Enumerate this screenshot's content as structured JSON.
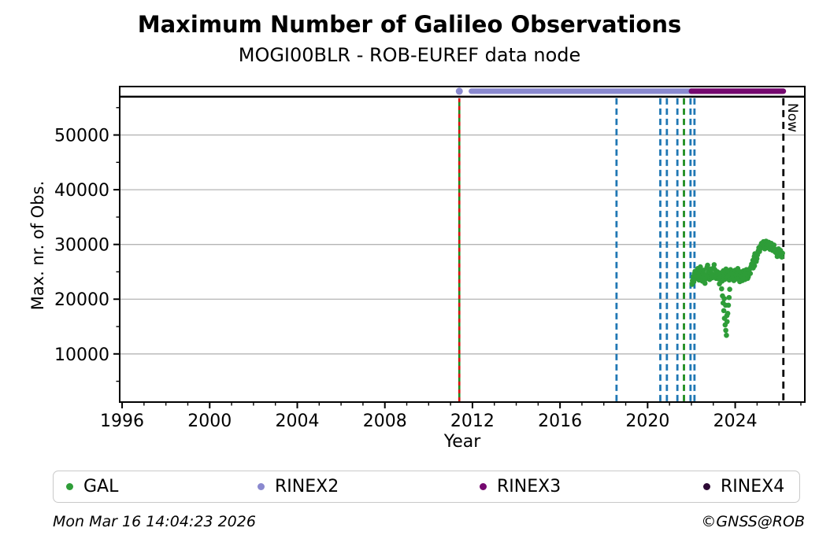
{
  "header": {
    "title": "Maximum Number of Galileo Observations",
    "subtitle": "MOGI00BLR - ROB-EUREF data node"
  },
  "footer": {
    "timestamp": "Mon Mar 16 14:04:23 2026",
    "copyright": "©GNSS@ROB"
  },
  "legend": {
    "items": [
      {
        "label": "GAL",
        "color": "#2e9d38"
      },
      {
        "label": "RINEX2",
        "color": "#8a89cf"
      },
      {
        "label": "RINEX3",
        "color": "#75086f"
      },
      {
        "label": "RINEX4",
        "color": "#2d0a35"
      }
    ]
  },
  "chart_data": {
    "type": "scatter",
    "title": "Maximum Number of Galileo Observations",
    "subtitle": "MOGI00BLR - ROB-EUREF data node",
    "xlabel": "Year",
    "ylabel": "Max. nr. of Obs.",
    "xlim": [
      1995.89,
      2027.18
    ],
    "ylim": [
      1200,
      58850
    ],
    "x_major_ticks": [
      1996,
      2000,
      2004,
      2008,
      2012,
      2016,
      2020,
      2024
    ],
    "x_minor_tick_step": 1,
    "y_major_ticks": [
      10000,
      20000,
      30000,
      40000,
      50000
    ],
    "y_minor_ticks": [
      5000,
      15000,
      25000,
      35000,
      45000,
      55000
    ],
    "grid": "horizontal-major",
    "grid_color": "#b4b4b4",
    "legend_position": "bottom",
    "reference_lines": {
      "max_obs_line": {
        "value": 57000,
        "color": "#000000",
        "style": "solid"
      },
      "launch_line": {
        "year": 2011.4,
        "color_solid": "#1e8c1e",
        "color_dash": "#dd1111",
        "style": "green-with-red-dashes"
      },
      "blue_dashed_lines": {
        "years": [
          2018.58,
          2020.58,
          2020.88,
          2021.36,
          2021.96,
          2022.14
        ],
        "color": "#1f77b4",
        "style": "dashed"
      },
      "green_dashed_line": {
        "year": 2021.66,
        "color": "#1e8c1e",
        "style": "dashed"
      },
      "now_line": {
        "year": 2026.2,
        "label": "Now",
        "color": "#000000",
        "style": "dashed"
      }
    },
    "series": [
      {
        "name": "RINEX2",
        "type": "line",
        "color": "#8a89cf",
        "value": 58000,
        "point_years": [
          2011.4
        ],
        "segment": [
          2011.95,
          2022.0
        ]
      },
      {
        "name": "RINEX3",
        "type": "line",
        "color": "#75086f",
        "value": 58000,
        "segment": [
          2022.0,
          2026.2
        ]
      },
      {
        "name": "RINEX4",
        "type": "line",
        "color": "#2d0a35",
        "value": null,
        "segment": null
      },
      {
        "name": "GAL",
        "type": "scatter",
        "color": "#2e9d38",
        "points": [
          [
            2022.03,
            22700
          ],
          [
            2022.04,
            22900
          ],
          [
            2022.05,
            23400
          ],
          [
            2022.08,
            24100
          ],
          [
            2022.11,
            23200
          ],
          [
            2022.14,
            24700
          ],
          [
            2022.17,
            25100
          ],
          [
            2022.2,
            24400
          ],
          [
            2022.23,
            23800
          ],
          [
            2022.26,
            24900
          ],
          [
            2022.29,
            25600
          ],
          [
            2022.32,
            24200
          ],
          [
            2022.35,
            23500
          ],
          [
            2022.38,
            24800
          ],
          [
            2022.41,
            25900
          ],
          [
            2022.44,
            25200
          ],
          [
            2022.47,
            24100
          ],
          [
            2022.5,
            23300
          ],
          [
            2022.53,
            24600
          ],
          [
            2022.56,
            25300
          ],
          [
            2022.59,
            24000
          ],
          [
            2022.62,
            22900
          ],
          [
            2022.65,
            23700
          ],
          [
            2022.68,
            24500
          ],
          [
            2022.71,
            25800
          ],
          [
            2022.74,
            26200
          ],
          [
            2022.77,
            25000
          ],
          [
            2022.8,
            24300
          ],
          [
            2022.83,
            23600
          ],
          [
            2022.86,
            24900
          ],
          [
            2022.89,
            25500
          ],
          [
            2022.92,
            24700
          ],
          [
            2022.95,
            23900
          ],
          [
            2022.98,
            24400
          ],
          [
            2023.01,
            25700
          ],
          [
            2023.04,
            26300
          ],
          [
            2023.07,
            25400
          ],
          [
            2023.1,
            24600
          ],
          [
            2023.13,
            23800
          ],
          [
            2023.16,
            24200
          ],
          [
            2023.19,
            25000
          ],
          [
            2023.22,
            24500
          ],
          [
            2023.25,
            23700
          ],
          [
            2023.28,
            22800
          ],
          [
            2023.31,
            23900
          ],
          [
            2023.34,
            24800
          ],
          [
            2023.37,
            24100
          ],
          [
            2023.4,
            23300
          ],
          [
            2023.43,
            24600
          ],
          [
            2023.46,
            25200
          ],
          [
            2023.49,
            24400
          ],
          [
            2023.52,
            23600
          ],
          [
            2023.55,
            24900
          ],
          [
            2023.58,
            25500
          ],
          [
            2023.61,
            24700
          ],
          [
            2023.64,
            23900
          ],
          [
            2023.67,
            25100
          ],
          [
            2023.7,
            24300
          ],
          [
            2023.73,
            23500
          ],
          [
            2023.76,
            24800
          ],
          [
            2023.79,
            25400
          ],
          [
            2023.82,
            24600
          ],
          [
            2023.85,
            23800
          ],
          [
            2023.88,
            25000
          ],
          [
            2023.91,
            24200
          ],
          [
            2023.94,
            23400
          ],
          [
            2023.97,
            24700
          ],
          [
            2024.0,
            25300
          ],
          [
            2024.03,
            24500
          ],
          [
            2024.06,
            23700
          ],
          [
            2024.09,
            24900
          ],
          [
            2024.12,
            25600
          ],
          [
            2024.15,
            24800
          ],
          [
            2024.18,
            24000
          ],
          [
            2024.21,
            23200
          ],
          [
            2024.24,
            24400
          ],
          [
            2024.27,
            25000
          ],
          [
            2024.3,
            24200
          ],
          [
            2024.33,
            23400
          ],
          [
            2024.36,
            24600
          ],
          [
            2024.39,
            25200
          ],
          [
            2024.42,
            24400
          ],
          [
            2024.45,
            23600
          ],
          [
            2024.48,
            24800
          ],
          [
            2024.51,
            25400
          ],
          [
            2024.54,
            24600
          ],
          [
            2024.57,
            23800
          ],
          [
            2024.6,
            24100
          ],
          [
            2024.63,
            24900
          ],
          [
            2024.66,
            25500
          ],
          [
            2024.69,
            24700
          ],
          [
            2024.72,
            25900
          ],
          [
            2024.75,
            26400
          ],
          [
            2023.38,
            21900
          ],
          [
            2023.42,
            20600
          ],
          [
            2023.45,
            19300
          ],
          [
            2023.48,
            17900
          ],
          [
            2023.5,
            20100
          ],
          [
            2023.51,
            16500
          ],
          [
            2023.54,
            15300
          ],
          [
            2023.56,
            18900
          ],
          [
            2023.57,
            14300
          ],
          [
            2023.6,
            13400
          ],
          [
            2023.62,
            17000
          ],
          [
            2023.63,
            15900
          ],
          [
            2023.66,
            17400
          ],
          [
            2023.69,
            18900
          ],
          [
            2023.72,
            20300
          ],
          [
            2023.75,
            21800
          ],
          [
            2024.78,
            26200
          ],
          [
            2024.81,
            27100
          ],
          [
            2024.82,
            25700
          ],
          [
            2024.84,
            26500
          ],
          [
            2024.87,
            27800
          ],
          [
            2024.88,
            26100
          ],
          [
            2024.9,
            28300
          ],
          [
            2024.93,
            27500
          ],
          [
            2024.96,
            26900
          ],
          [
            2024.99,
            27400
          ],
          [
            2025.02,
            28100
          ],
          [
            2025.05,
            28800
          ],
          [
            2025.08,
            29400
          ],
          [
            2025.11,
            28700
          ],
          [
            2025.14,
            29200
          ],
          [
            2025.17,
            29800
          ],
          [
            2025.2,
            30200
          ],
          [
            2025.23,
            29500
          ],
          [
            2025.26,
            30000
          ],
          [
            2025.29,
            30500
          ],
          [
            2025.32,
            29800
          ],
          [
            2025.35,
            29200
          ],
          [
            2025.38,
            30100
          ],
          [
            2025.41,
            30600
          ],
          [
            2025.44,
            29900
          ],
          [
            2025.47,
            29400
          ],
          [
            2025.5,
            30000
          ],
          [
            2025.53,
            30400
          ],
          [
            2025.56,
            29700
          ],
          [
            2025.59,
            29100
          ],
          [
            2025.62,
            29600
          ],
          [
            2025.65,
            30200
          ],
          [
            2025.68,
            29500
          ],
          [
            2025.71,
            28900
          ],
          [
            2025.74,
            29300
          ],
          [
            2025.77,
            29900
          ],
          [
            2025.8,
            29200
          ],
          [
            2025.83,
            28600
          ],
          [
            2025.86,
            29000
          ],
          [
            2025.89,
            28400
          ],
          [
            2025.92,
            27800
          ],
          [
            2025.95,
            28600
          ],
          [
            2025.98,
            29200
          ],
          [
            2026.01,
            28500
          ],
          [
            2026.04,
            27900
          ],
          [
            2026.07,
            28900
          ],
          [
            2026.1,
            28300
          ],
          [
            2026.13,
            27700
          ],
          [
            2026.16,
            28400
          ]
        ]
      }
    ]
  }
}
